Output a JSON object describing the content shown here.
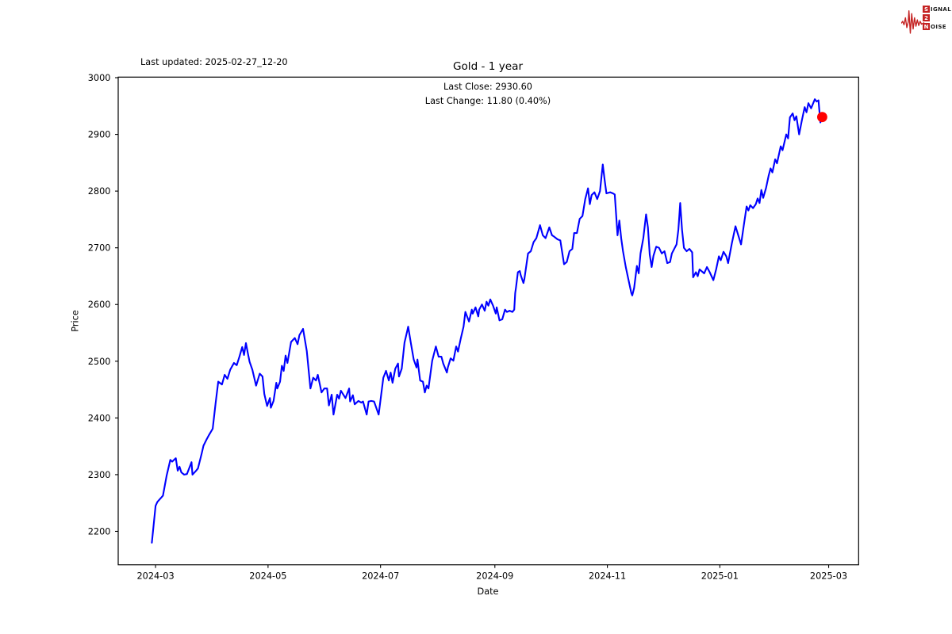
{
  "header": {
    "last_updated": "Last updated: 2025-02-27_12-20",
    "title": "Gold - 1 year",
    "annotation_line1": "Last Close: 2930.60",
    "annotation_line2": "Last Change: 11.80 (0.40%)"
  },
  "logo": {
    "color": "#c42222",
    "rows": [
      {
        "lead": "S",
        "rest": "IGNAL"
      },
      {
        "lead": "2",
        "rest": ""
      },
      {
        "lead": "N",
        "rest": "OISE"
      }
    ]
  },
  "chart_data": {
    "type": "line",
    "title": "Gold - 1 year",
    "xlabel": "Date",
    "ylabel": "Price",
    "legend": "none",
    "grid": false,
    "line_color": "#0000ff",
    "marker_color": "#ff0000",
    "last_close": 2930.6,
    "last_change": 11.8,
    "last_change_pct": 0.4,
    "first_date": "2024-02-28",
    "last_date": "2025-02-27",
    "x_unit": "days since 2024-03-01",
    "xlim_days": [
      -20.25,
      381.25
    ],
    "ylim": [
      2141,
      3001
    ],
    "y_ticks": [
      2200,
      2300,
      2400,
      2500,
      2600,
      2700,
      2800,
      2900,
      3000
    ],
    "x_ticks": [
      {
        "day": 0,
        "label": "2024-03"
      },
      {
        "day": 61,
        "label": "2024-05"
      },
      {
        "day": 122,
        "label": "2024-07"
      },
      {
        "day": 184,
        "label": "2024-09"
      },
      {
        "day": 245,
        "label": "2024-11"
      },
      {
        "day": 306,
        "label": "2025-01"
      },
      {
        "day": 365,
        "label": "2025-03"
      }
    ],
    "points": [
      [
        -2,
        2180
      ],
      [
        0,
        2245
      ],
      [
        1,
        2252
      ],
      [
        4,
        2263
      ],
      [
        6,
        2298
      ],
      [
        8,
        2326
      ],
      [
        9,
        2323
      ],
      [
        11,
        2329
      ],
      [
        12,
        2307
      ],
      [
        13,
        2314
      ],
      [
        14,
        2304
      ],
      [
        15.5,
        2300
      ],
      [
        17,
        2301
      ],
      [
        19.5,
        2322
      ],
      [
        20,
        2300
      ],
      [
        22,
        2307
      ],
      [
        23,
        2311
      ],
      [
        25,
        2337
      ],
      [
        26,
        2351
      ],
      [
        27.5,
        2361
      ],
      [
        29,
        2370
      ],
      [
        31,
        2381
      ],
      [
        32.5,
        2424
      ],
      [
        34,
        2464
      ],
      [
        36,
        2459
      ],
      [
        37.5,
        2476
      ],
      [
        39,
        2469
      ],
      [
        40.5,
        2485
      ],
      [
        42.5,
        2497
      ],
      [
        44,
        2493
      ],
      [
        45.5,
        2508
      ],
      [
        47,
        2525
      ],
      [
        48,
        2511
      ],
      [
        49,
        2532
      ],
      [
        50,
        2515
      ],
      [
        51,
        2499
      ],
      [
        52.5,
        2485
      ],
      [
        54.5,
        2457
      ],
      [
        56.5,
        2478
      ],
      [
        58,
        2473
      ],
      [
        59,
        2442
      ],
      [
        60.5,
        2421
      ],
      [
        62,
        2435
      ],
      [
        62.5,
        2418
      ],
      [
        64,
        2430
      ],
      [
        65.5,
        2462
      ],
      [
        66,
        2452
      ],
      [
        67.5,
        2464
      ],
      [
        68.5,
        2492
      ],
      [
        69.5,
        2483
      ],
      [
        70.5,
        2510
      ],
      [
        71.5,
        2497
      ],
      [
        73.5,
        2534
      ],
      [
        75.5,
        2541
      ],
      [
        77,
        2530
      ],
      [
        78,
        2546
      ],
      [
        80,
        2557
      ],
      [
        82,
        2518
      ],
      [
        84,
        2452
      ],
      [
        85.5,
        2471
      ],
      [
        87,
        2466
      ],
      [
        88,
        2476
      ],
      [
        90,
        2445
      ],
      [
        91.5,
        2452
      ],
      [
        93,
        2452
      ],
      [
        94,
        2422
      ],
      [
        95.5,
        2441
      ],
      [
        96.5,
        2406
      ],
      [
        98.5,
        2441
      ],
      [
        99.5,
        2434
      ],
      [
        100.5,
        2448
      ],
      [
        103,
        2435
      ],
      [
        105,
        2452
      ],
      [
        105.5,
        2429
      ],
      [
        107,
        2440
      ],
      [
        108,
        2424
      ],
      [
        110,
        2430
      ],
      [
        111.5,
        2427
      ],
      [
        112.5,
        2429
      ],
      [
        114.5,
        2406
      ],
      [
        115.5,
        2429
      ],
      [
        117,
        2430
      ],
      [
        118.5,
        2429
      ],
      [
        121,
        2406
      ],
      [
        123.5,
        2471
      ],
      [
        125,
        2483
      ],
      [
        126.5,
        2466
      ],
      [
        127.5,
        2480
      ],
      [
        128.5,
        2462
      ],
      [
        130,
        2487
      ],
      [
        131.5,
        2496
      ],
      [
        132,
        2473
      ],
      [
        133.5,
        2487
      ],
      [
        135,
        2533
      ],
      [
        136.5,
        2554
      ],
      [
        137,
        2561
      ],
      [
        138.5,
        2531
      ],
      [
        140,
        2503
      ],
      [
        141.5,
        2489
      ],
      [
        142,
        2503
      ],
      [
        143.5,
        2466
      ],
      [
        145,
        2464
      ],
      [
        146,
        2445
      ],
      [
        147,
        2457
      ],
      [
        148,
        2452
      ],
      [
        150,
        2501
      ],
      [
        152,
        2526
      ],
      [
        153.5,
        2508
      ],
      [
        155,
        2508
      ],
      [
        156,
        2496
      ],
      [
        158,
        2480
      ],
      [
        158.5,
        2489
      ],
      [
        160,
        2505
      ],
      [
        161.5,
        2501
      ],
      [
        163,
        2526
      ],
      [
        164,
        2517
      ],
      [
        165.5,
        2540
      ],
      [
        167,
        2561
      ],
      [
        168,
        2587
      ],
      [
        170,
        2570
      ],
      [
        171.5,
        2591
      ],
      [
        172,
        2584
      ],
      [
        173.5,
        2595
      ],
      [
        175,
        2579
      ],
      [
        175.5,
        2591
      ],
      [
        177,
        2600
      ],
      [
        178.5,
        2589
      ],
      [
        179.5,
        2605
      ],
      [
        180.5,
        2598
      ],
      [
        181.5,
        2609
      ],
      [
        183,
        2598
      ],
      [
        184.5,
        2584
      ],
      [
        185,
        2595
      ],
      [
        186.5,
        2572
      ],
      [
        188,
        2574
      ],
      [
        189.5,
        2591
      ],
      [
        190.5,
        2587
      ],
      [
        192,
        2589
      ],
      [
        193.5,
        2587
      ],
      [
        194.5,
        2591
      ],
      [
        195,
        2620
      ],
      [
        195.5,
        2631
      ],
      [
        196.5,
        2657
      ],
      [
        197.5,
        2659
      ],
      [
        198,
        2652
      ],
      [
        199.5,
        2638
      ],
      [
        200,
        2645
      ],
      [
        202,
        2690
      ],
      [
        203.5,
        2694
      ],
      [
        205,
        2710
      ],
      [
        206.5,
        2717
      ],
      [
        208.5,
        2740
      ],
      [
        210,
        2722
      ],
      [
        211.5,
        2717
      ],
      [
        213.5,
        2736
      ],
      [
        215,
        2722
      ],
      [
        216,
        2720
      ],
      [
        218,
        2715
      ],
      [
        219.5,
        2713
      ],
      [
        221.5,
        2671
      ],
      [
        223,
        2675
      ],
      [
        224.5,
        2694
      ],
      [
        226,
        2698
      ],
      [
        227,
        2726
      ],
      [
        228.5,
        2726
      ],
      [
        230,
        2751
      ],
      [
        231.5,
        2756
      ],
      [
        233,
        2786
      ],
      [
        234.5,
        2805
      ],
      [
        235.5,
        2777
      ],
      [
        236.5,
        2793
      ],
      [
        238,
        2798
      ],
      [
        239.5,
        2786
      ],
      [
        241,
        2800
      ],
      [
        242.5,
        2847
      ],
      [
        243.5,
        2820
      ],
      [
        244.5,
        2796
      ],
      [
        246.5,
        2798
      ],
      [
        248,
        2796
      ],
      [
        249,
        2794
      ],
      [
        250.5,
        2722
      ],
      [
        251.5,
        2748
      ],
      [
        252.5,
        2717
      ],
      [
        253.5,
        2694
      ],
      [
        255,
        2666
      ],
      [
        256.5,
        2643
      ],
      [
        258,
        2620
      ],
      [
        258.5,
        2616
      ],
      [
        259.5,
        2629
      ],
      [
        261,
        2668
      ],
      [
        262,
        2655
      ],
      [
        263,
        2690
      ],
      [
        264.5,
        2717
      ],
      [
        266,
        2759
      ],
      [
        267,
        2736
      ],
      [
        268,
        2688
      ],
      [
        269,
        2666
      ],
      [
        270,
        2686
      ],
      [
        271.5,
        2702
      ],
      [
        273,
        2700
      ],
      [
        274.5,
        2690
      ],
      [
        276,
        2694
      ],
      [
        277.5,
        2673
      ],
      [
        279,
        2675
      ],
      [
        280,
        2690
      ],
      [
        282.5,
        2706
      ],
      [
        283.5,
        2732
      ],
      [
        284.5,
        2779
      ],
      [
        285.5,
        2732
      ],
      [
        286.5,
        2700
      ],
      [
        288,
        2694
      ],
      [
        289.5,
        2698
      ],
      [
        291,
        2692
      ],
      [
        291.5,
        2648
      ],
      [
        293,
        2657
      ],
      [
        294,
        2650
      ],
      [
        295,
        2662
      ],
      [
        297.5,
        2655
      ],
      [
        299,
        2666
      ],
      [
        300.5,
        2657
      ],
      [
        302.5,
        2643
      ],
      [
        304,
        2662
      ],
      [
        305.5,
        2685
      ],
      [
        306.5,
        2678
      ],
      [
        308,
        2693
      ],
      [
        309.5,
        2685
      ],
      [
        310.5,
        2673
      ],
      [
        312.5,
        2708
      ],
      [
        314.5,
        2738
      ],
      [
        316,
        2722
      ],
      [
        317.5,
        2706
      ],
      [
        319,
        2740
      ],
      [
        320.5,
        2773
      ],
      [
        321.5,
        2766
      ],
      [
        322.5,
        2775
      ],
      [
        324,
        2770
      ],
      [
        325.5,
        2777
      ],
      [
        326.5,
        2787
      ],
      [
        327.5,
        2779
      ],
      [
        328.5,
        2802
      ],
      [
        329.5,
        2788
      ],
      [
        331,
        2805
      ],
      [
        332.5,
        2828
      ],
      [
        333.5,
        2840
      ],
      [
        334.5,
        2833
      ],
      [
        336,
        2856
      ],
      [
        337,
        2849
      ],
      [
        339,
        2879
      ],
      [
        340,
        2872
      ],
      [
        342,
        2900
      ],
      [
        343,
        2893
      ],
      [
        344,
        2930
      ],
      [
        345.5,
        2937
      ],
      [
        346.5,
        2925
      ],
      [
        347.5,
        2932
      ],
      [
        349,
        2900
      ],
      [
        350.5,
        2925
      ],
      [
        352,
        2948
      ],
      [
        353,
        2939
      ],
      [
        354,
        2955
      ],
      [
        355.5,
        2946
      ],
      [
        357.5,
        2962
      ],
      [
        358.5,
        2958
      ],
      [
        359.5,
        2960
      ],
      [
        360.5,
        2921
      ],
      [
        361.5,
        2930.6
      ]
    ]
  }
}
